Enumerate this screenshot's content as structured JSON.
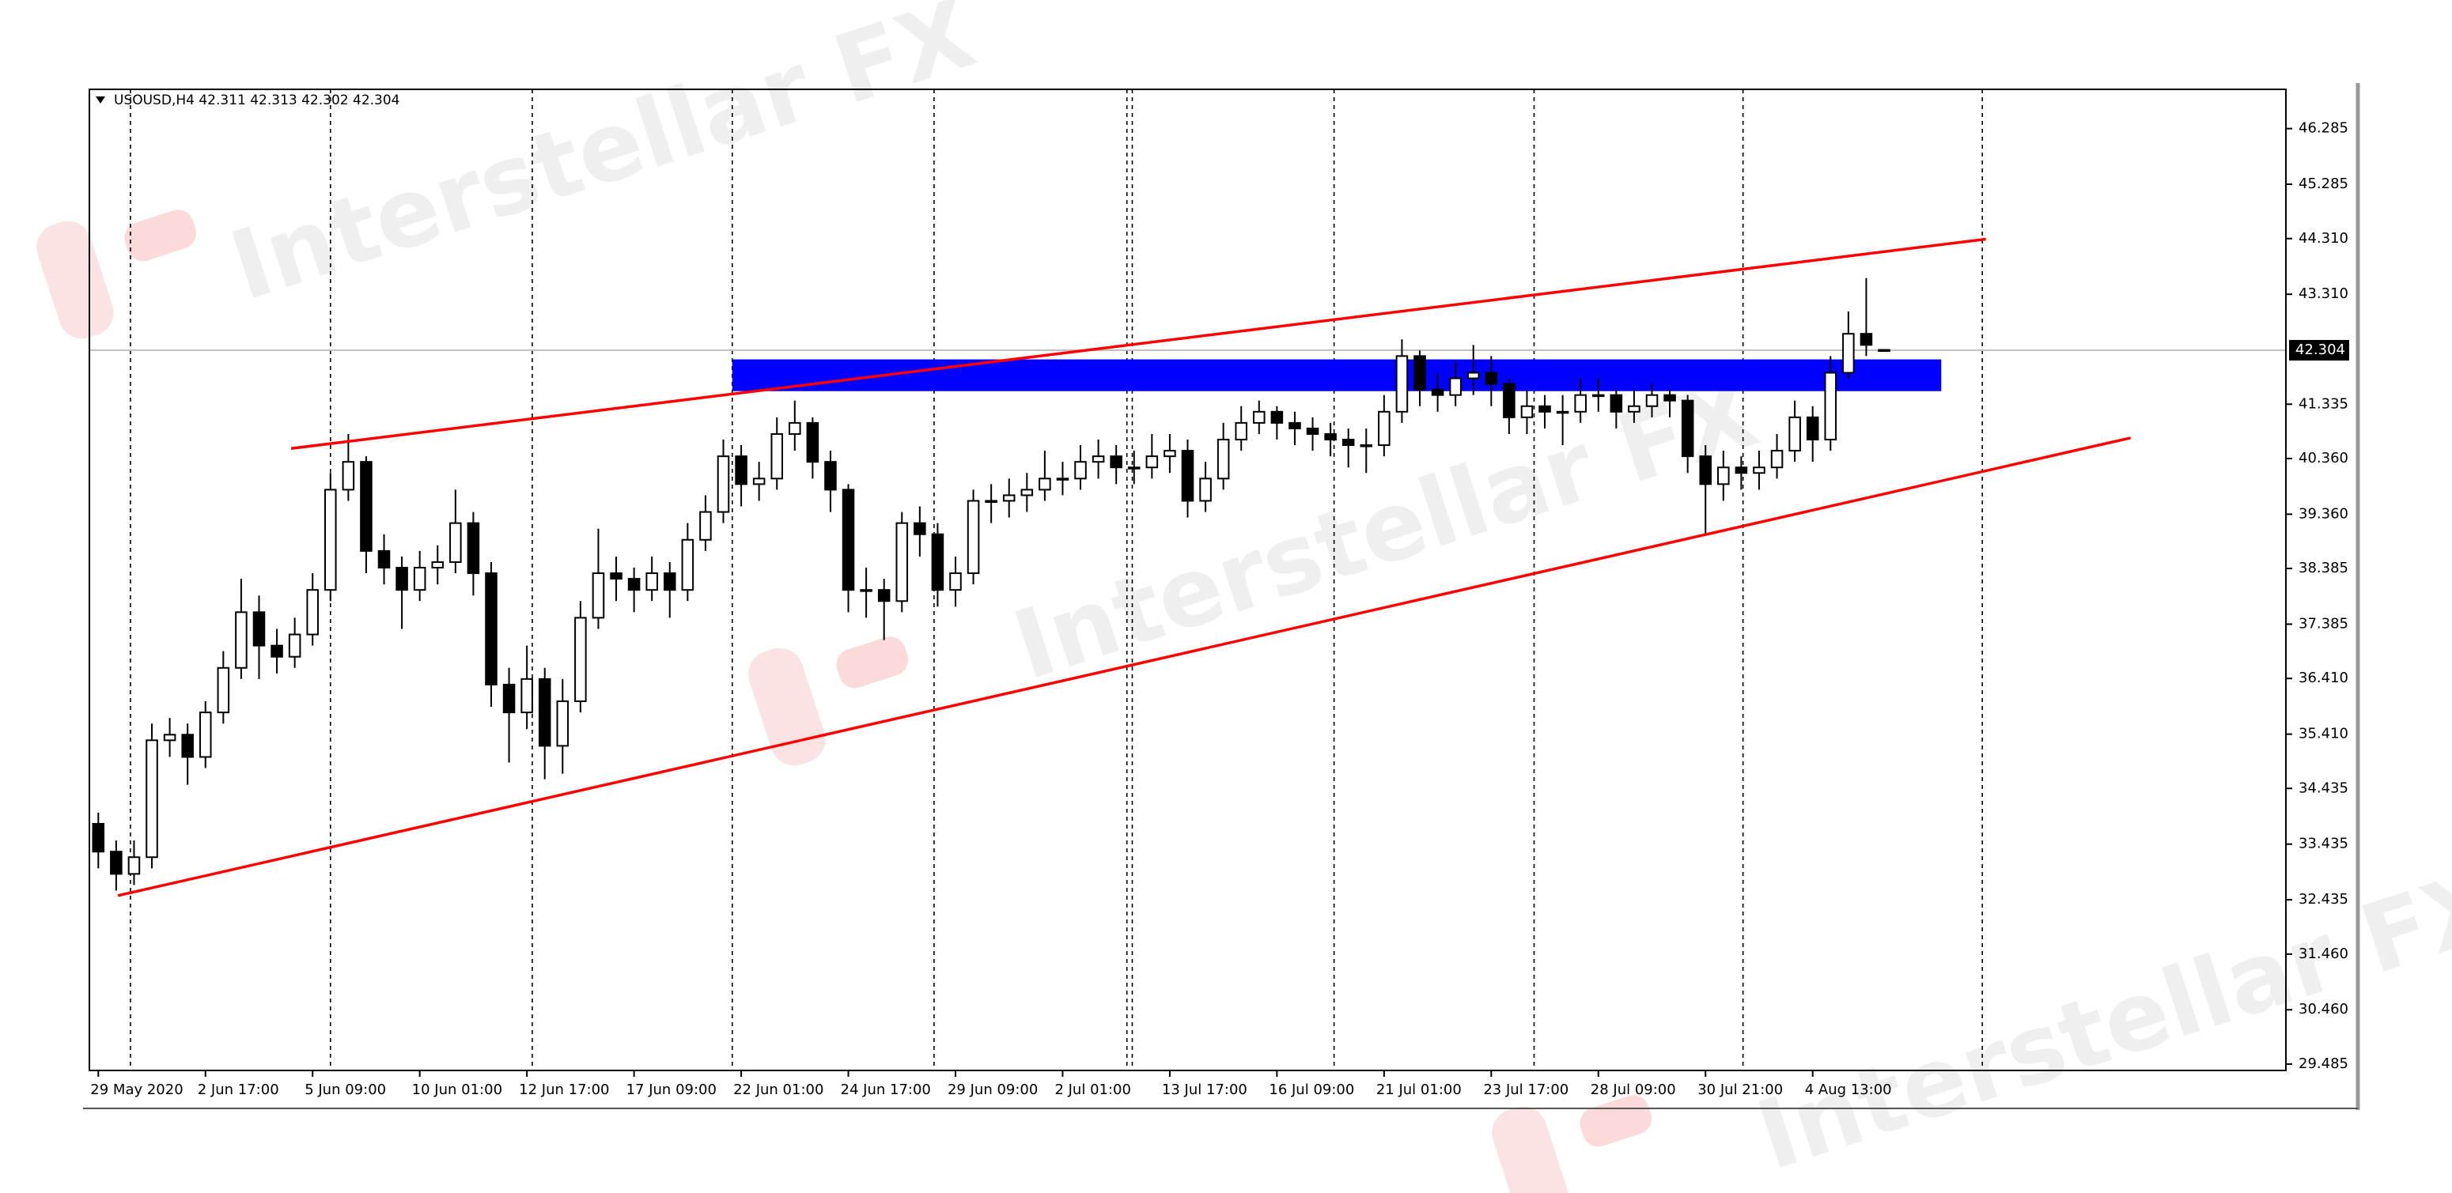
{
  "chart_data": {
    "type": "candlestick",
    "title": "USOUSD,H4  42.311 42.313 42.302 42.304",
    "open": [
      33.8,
      33.3,
      32.9,
      33.2,
      35.3,
      35.4,
      35.0,
      35.8,
      36.6,
      37.6,
      37.0,
      36.8,
      37.2,
      38.0,
      39.8,
      40.3,
      38.7,
      38.4,
      38.0,
      38.4,
      38.5,
      39.2,
      38.3,
      36.3,
      35.8,
      36.4,
      35.2,
      36.0,
      37.5,
      38.3,
      38.2,
      38.0,
      38.3,
      38.0,
      38.9,
      39.4,
      40.4,
      39.9,
      40.0,
      40.8,
      41.0,
      40.3,
      39.8,
      38.0,
      38.0,
      37.8,
      39.2,
      39.0,
      38.0,
      38.3,
      39.6,
      39.6,
      39.7,
      39.8,
      40.0,
      40.0,
      40.3,
      40.4,
      40.2,
      40.2,
      40.4,
      40.5,
      39.6,
      40.0,
      40.7,
      41.0,
      41.2,
      41.0,
      40.9,
      40.8,
      40.7,
      40.6,
      40.6,
      41.2,
      42.2,
      41.6,
      41.5,
      41.8,
      41.9,
      41.7,
      41.1,
      41.3,
      41.2,
      41.2,
      41.5,
      41.5,
      41.2,
      41.3,
      41.5,
      41.4,
      40.4,
      39.9,
      40.2,
      40.1,
      40.2,
      40.5,
      41.1,
      40.7,
      41.9,
      42.6,
      42.311
    ],
    "high": [
      34.0,
      33.5,
      33.5,
      35.6,
      35.7,
      35.6,
      36.0,
      36.9,
      38.2,
      37.9,
      37.3,
      37.5,
      38.3,
      40.1,
      40.8,
      40.4,
      39.0,
      38.6,
      38.7,
      38.8,
      39.8,
      39.4,
      38.5,
      36.6,
      37.0,
      36.6,
      36.4,
      37.8,
      39.1,
      38.6,
      38.4,
      38.6,
      38.5,
      39.2,
      39.7,
      40.7,
      40.6,
      40.3,
      41.1,
      41.4,
      41.1,
      40.5,
      39.9,
      38.4,
      38.2,
      39.4,
      39.5,
      39.2,
      38.6,
      39.8,
      39.9,
      40.0,
      40.1,
      40.5,
      40.3,
      40.6,
      40.7,
      40.6,
      40.5,
      40.8,
      40.8,
      40.7,
      40.3,
      41.0,
      41.3,
      41.4,
      41.3,
      41.2,
      41.1,
      41.0,
      40.9,
      40.9,
      41.5,
      42.5,
      42.3,
      41.9,
      42.1,
      42.4,
      42.2,
      41.8,
      41.6,
      41.5,
      41.5,
      41.8,
      41.8,
      41.6,
      41.6,
      41.7,
      41.6,
      41.5,
      40.6,
      40.5,
      40.4,
      40.5,
      40.8,
      41.4,
      41.3,
      42.2,
      43.0,
      43.6,
      42.313
    ],
    "low": [
      33.0,
      32.6,
      32.7,
      33.0,
      35.0,
      34.5,
      34.8,
      35.6,
      36.4,
      36.4,
      36.5,
      36.6,
      37.0,
      37.8,
      39.6,
      38.3,
      38.1,
      37.3,
      37.8,
      38.1,
      38.3,
      37.9,
      35.9,
      34.9,
      35.5,
      34.6,
      34.7,
      35.8,
      37.3,
      37.8,
      37.6,
      37.8,
      37.5,
      37.8,
      38.7,
      39.2,
      39.5,
      39.6,
      39.8,
      40.5,
      40.0,
      39.4,
      37.6,
      37.5,
      37.1,
      37.6,
      38.6,
      37.7,
      37.7,
      38.1,
      39.2,
      39.3,
      39.4,
      39.6,
      39.7,
      39.8,
      40.0,
      39.9,
      39.9,
      40.0,
      40.1,
      39.3,
      39.4,
      39.8,
      40.5,
      40.8,
      40.7,
      40.6,
      40.5,
      40.4,
      40.2,
      40.1,
      40.4,
      41.0,
      41.3,
      41.2,
      41.3,
      41.5,
      41.3,
      40.8,
      40.8,
      40.9,
      40.6,
      41.0,
      41.2,
      40.9,
      41.0,
      41.1,
      41.1,
      40.1,
      39.0,
      39.6,
      39.8,
      39.8,
      40.0,
      40.3,
      40.3,
      40.5,
      41.8,
      42.2,
      42.302
    ],
    "close": [
      33.3,
      32.9,
      33.2,
      35.3,
      35.4,
      35.0,
      35.8,
      36.6,
      37.6,
      37.0,
      36.8,
      37.2,
      38.0,
      39.8,
      40.3,
      38.7,
      38.4,
      38.0,
      38.4,
      38.5,
      39.2,
      38.3,
      36.3,
      35.8,
      36.4,
      35.2,
      36.0,
      37.5,
      38.3,
      38.2,
      38.0,
      38.3,
      38.0,
      38.9,
      39.4,
      40.4,
      39.9,
      40.0,
      40.8,
      41.0,
      40.3,
      39.8,
      38.0,
      38.0,
      37.8,
      39.2,
      39.0,
      38.0,
      38.3,
      39.6,
      39.6,
      39.7,
      39.8,
      40.0,
      40.0,
      40.3,
      40.4,
      40.2,
      40.2,
      40.4,
      40.5,
      39.6,
      40.0,
      40.7,
      41.0,
      41.2,
      41.0,
      40.9,
      40.8,
      40.7,
      40.6,
      40.6,
      41.2,
      42.2,
      41.6,
      41.5,
      41.8,
      41.9,
      41.7,
      41.1,
      41.3,
      41.2,
      41.2,
      41.5,
      41.5,
      41.2,
      41.3,
      41.5,
      41.4,
      40.4,
      39.9,
      40.2,
      40.1,
      40.2,
      40.5,
      41.1,
      40.7,
      41.9,
      42.6,
      42.4,
      42.304
    ],
    "xlim": [
      -0.5,
      122.5
    ],
    "xticks": [
      {
        "value": 0,
        "label": "29 May 2020"
      },
      {
        "value": 6,
        "label": "2 Jun 17:00"
      },
      {
        "value": 12,
        "label": "5 Jun 09:00"
      },
      {
        "value": 18,
        "label": "10 Jun 01:00"
      },
      {
        "value": 24,
        "label": "12 Jun 17:00"
      },
      {
        "value": 30,
        "label": "17 Jun 09:00"
      },
      {
        "value": 36,
        "label": "22 Jun 01:00"
      },
      {
        "value": 42,
        "label": "24 Jun 17:00"
      },
      {
        "value": 48,
        "label": "29 Jun 09:00"
      },
      {
        "value": 54,
        "label": "2 Jul 01:00"
      },
      {
        "value": 60,
        "label": "13 Jul 17:00"
      },
      {
        "value": 66,
        "label": "16 Jul 09:00"
      },
      {
        "value": 72,
        "label": "21 Jul 01:00"
      },
      {
        "value": 78,
        "label": "23 Jul 17:00"
      },
      {
        "value": 84,
        "label": "28 Jul 09:00"
      },
      {
        "value": 90,
        "label": "30 Jul 21:00"
      },
      {
        "value": 96,
        "label": "4 Aug 13:00"
      }
    ],
    "ylim": [
      29.37,
      46.99
    ],
    "yticks": [
      46.285,
      45.285,
      {
        "value": 44.31,
        "label": "44.310"
      },
      {
        "value": 43.31,
        "label": "43.310"
      },
      41.335,
      {
        "value": 40.36,
        "label": "40.360"
      },
      {
        "value": 39.36,
        "label": "39.360"
      },
      38.385,
      37.385,
      {
        "value": 36.41,
        "label": "36.410"
      },
      {
        "value": 35.41,
        "label": "35.410"
      },
      34.435,
      33.435,
      32.435,
      {
        "value": 31.46,
        "label": "31.460"
      },
      {
        "value": 30.46,
        "label": "30.460"
      },
      29.485
    ],
    "period_separators": [
      1.8,
      13.0,
      24.3,
      35.5,
      46.8,
      57.6,
      57.9,
      69.2,
      80.4,
      92.1,
      105.5
    ],
    "trend_lines": [
      {
        "color": "#ff0000",
        "x": [
          10.8,
          105.7
        ],
        "y": [
          40.54,
          44.3
        ]
      },
      {
        "color": "#ff0000",
        "x": [
          1.1,
          113.8
        ],
        "y": [
          32.51,
          40.73
        ]
      }
    ],
    "zone": {
      "color": "#0000ff",
      "x": [
        35.5,
        103.2
      ],
      "y": [
        41.57,
        42.14
      ]
    },
    "up_color": "#ffffff",
    "down_color": "#000000",
    "watermarks": [
      "Interstellar FX",
      "Interstellar FX",
      "Interstellar FX"
    ]
  }
}
